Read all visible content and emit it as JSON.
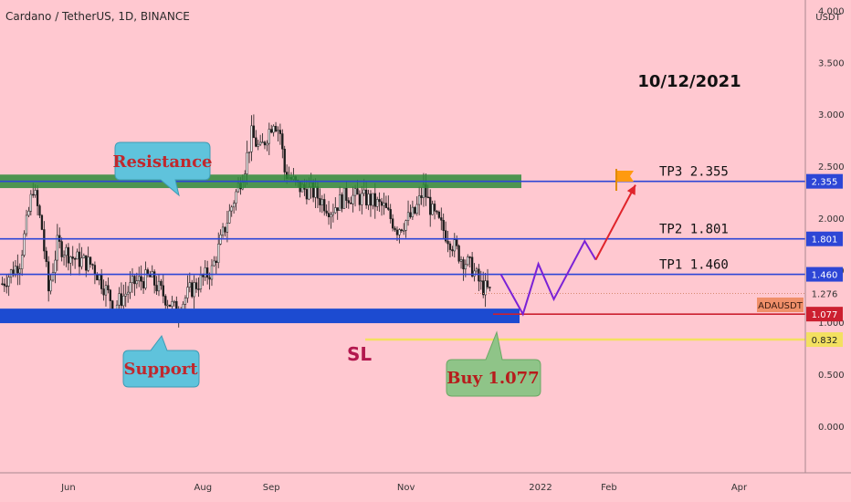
{
  "header": {
    "title": "Cardano / TetherUS, 1D, BINANCE",
    "currency": "USDT"
  },
  "annotations": {
    "date": "10/12/2021",
    "resistance_label": "Resistance",
    "support_label": "Support",
    "buy_label": "Buy  1.077",
    "sl_label": "SL",
    "tp3_label": "TP3  2.355",
    "tp2_label": "TP2  1.801",
    "tp1_label": "TP1  1.460",
    "symbol_tag": "ADAUSDT"
  },
  "colors": {
    "background": "#ffc8d0",
    "resistance_zone": "#2e8b3a",
    "support_zone": "#1c4bd1",
    "tp_lines": "#2d46d6",
    "stop_loss": "#cc2030",
    "sl_line": "#f3e060",
    "projection_purple": "#7b22d6",
    "projection_red": "#e0242b",
    "callout_fill": "#5fc3dc",
    "buy_callout_fill": "#8fc488",
    "current_price_tag": "#f0906a"
  },
  "chart_data": {
    "type": "candlestick",
    "symbol": "ADAUSDT",
    "timeframe": "1D",
    "exchange": "BINANCE",
    "title": "Cardano / TetherUS, 1D, BINANCE",
    "ylabel": "USDT",
    "ylim": [
      -0.45,
      4.1
    ],
    "xlim": [
      "2021-05-01",
      "2022-05-01"
    ],
    "y_ticks": [
      "0.000",
      "0.500",
      "1.000",
      "1.500",
      "2.000",
      "2.500",
      "3.000",
      "3.500",
      "4.000"
    ],
    "x_ticks": [
      {
        "date": "2021-06-01",
        "label": "Jun"
      },
      {
        "date": "2021-08-01",
        "label": "Aug"
      },
      {
        "date": "2021-09-01",
        "label": "Sep"
      },
      {
        "date": "2021-11-01",
        "label": "Nov"
      },
      {
        "date": "2022-01-01",
        "label": "2022"
      },
      {
        "date": "2022-02-01",
        "label": "Feb"
      },
      {
        "date": "2022-04-01",
        "label": "Apr"
      }
    ],
    "price_path": [
      {
        "date": "2021-05-02",
        "close": 1.37
      },
      {
        "date": "2021-05-10",
        "close": 1.58
      },
      {
        "date": "2021-05-16",
        "close": 2.3
      },
      {
        "date": "2021-05-20",
        "close": 1.9
      },
      {
        "date": "2021-05-23",
        "close": 1.3
      },
      {
        "date": "2021-05-27",
        "close": 1.75
      },
      {
        "date": "2021-06-03",
        "close": 1.62
      },
      {
        "date": "2021-06-12",
        "close": 1.55
      },
      {
        "date": "2021-06-22",
        "close": 1.15
      },
      {
        "date": "2021-07-01",
        "close": 1.38
      },
      {
        "date": "2021-07-08",
        "close": 1.43
      },
      {
        "date": "2021-07-20",
        "close": 1.1
      },
      {
        "date": "2021-07-26",
        "close": 1.3
      },
      {
        "date": "2021-08-05",
        "close": 1.5
      },
      {
        "date": "2021-08-13",
        "close": 2.05
      },
      {
        "date": "2021-08-20",
        "close": 2.5
      },
      {
        "date": "2021-08-23",
        "close": 2.8
      },
      {
        "date": "2021-08-27",
        "close": 2.65
      },
      {
        "date": "2021-09-02",
        "close": 2.95
      },
      {
        "date": "2021-09-05",
        "close": 2.82
      },
      {
        "date": "2021-09-07",
        "close": 2.45
      },
      {
        "date": "2021-09-13",
        "close": 2.3
      },
      {
        "date": "2021-09-20",
        "close": 2.25
      },
      {
        "date": "2021-09-28",
        "close": 2.08
      },
      {
        "date": "2021-10-05",
        "close": 2.22
      },
      {
        "date": "2021-10-15",
        "close": 2.18
      },
      {
        "date": "2021-10-22",
        "close": 2.1
      },
      {
        "date": "2021-10-28",
        "close": 1.9
      },
      {
        "date": "2021-11-05",
        "close": 2.05
      },
      {
        "date": "2021-11-09",
        "close": 2.28
      },
      {
        "date": "2021-11-13",
        "close": 2.05
      },
      {
        "date": "2021-11-20",
        "close": 1.82
      },
      {
        "date": "2021-11-26",
        "close": 1.62
      },
      {
        "date": "2021-12-01",
        "close": 1.52
      },
      {
        "date": "2021-12-05",
        "close": 1.35
      },
      {
        "date": "2021-12-10",
        "close": 1.276
      }
    ],
    "levels": [
      {
        "name": "TP3",
        "value": 2.355,
        "label": "2.355"
      },
      {
        "name": "TP2",
        "value": 1.801,
        "label": "1.801"
      },
      {
        "name": "TP1",
        "value": 1.46,
        "label": "1.460"
      },
      {
        "name": "Buy",
        "value": 1.077,
        "label": "1.077"
      },
      {
        "name": "SL",
        "value": 0.832,
        "label": "0.832"
      }
    ],
    "current_price": {
      "value": 1.276,
      "label": "1.276"
    },
    "zones": [
      {
        "name": "Resistance",
        "from": 2.29,
        "to": 2.42
      },
      {
        "name": "Support",
        "from": 0.99,
        "to": 1.13
      }
    ],
    "projection": [
      {
        "date": "2021-12-14",
        "price": 1.46
      },
      {
        "date": "2021-12-24",
        "price": 1.077
      },
      {
        "date": "2021-12-31",
        "price": 1.56
      },
      {
        "date": "2022-01-07",
        "price": 1.22
      },
      {
        "date": "2022-01-21",
        "price": 1.78
      },
      {
        "date": "2022-01-26",
        "price": 1.6
      },
      {
        "date": "2022-02-13",
        "price": 2.32
      }
    ]
  }
}
